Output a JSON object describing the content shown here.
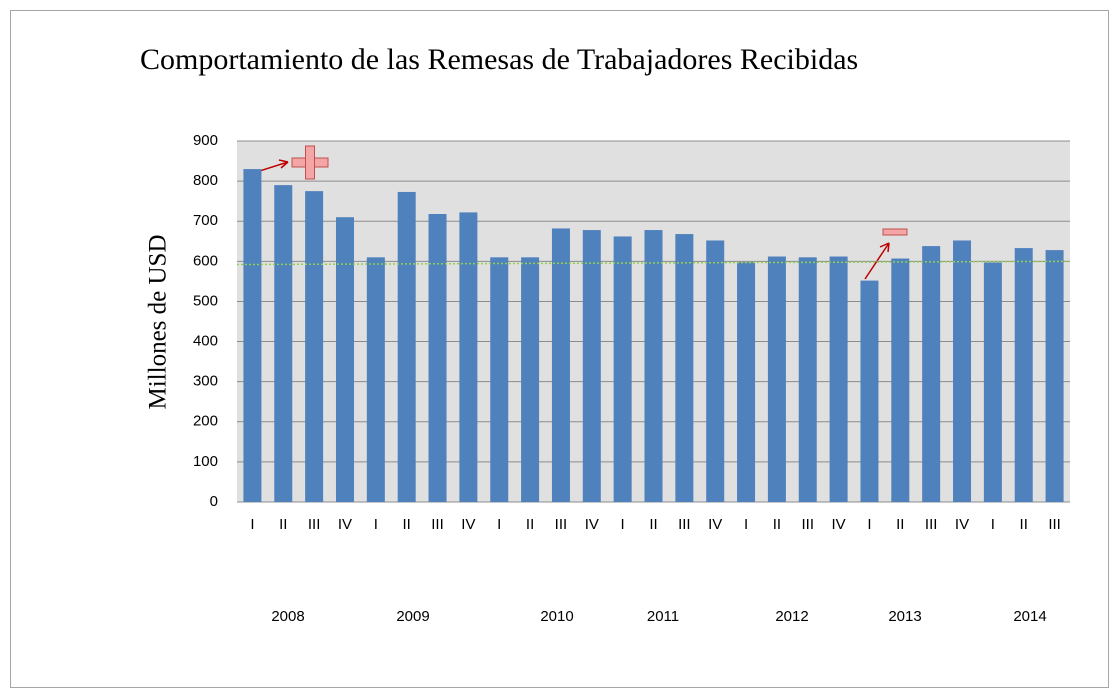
{
  "chart_data": {
    "type": "bar",
    "title": "Comportamiento de las Remesas  de Trabajadores Recibidas",
    "y_label": "Millones de USD",
    "categories": [
      "I",
      "II",
      "III",
      "IV",
      "I",
      "II",
      "III",
      "IV",
      "I",
      "II",
      "III",
      "IV",
      "I",
      "II",
      "III",
      "IV",
      "I",
      "II",
      "III",
      "IV",
      "I",
      "II",
      "III",
      "IV",
      "I",
      "II",
      "III"
    ],
    "years": [
      "2008",
      "2009",
      "2010",
      "2011",
      "2012",
      "2013",
      "2014"
    ],
    "values": [
      830,
      790,
      775,
      710,
      610,
      773,
      718,
      722,
      610,
      610,
      682,
      678,
      662,
      678,
      668,
      652,
      598,
      612,
      610,
      612,
      552,
      607,
      638,
      652,
      597,
      633,
      628
    ],
    "color": "#4f81bd",
    "reference_line": {
      "values": [
        592,
        600
      ],
      "color": "#92d050"
    },
    "ylim": [
      0,
      900
    ],
    "yticks": [
      0,
      100,
      200,
      300,
      400,
      500,
      600,
      700,
      800,
      900
    ],
    "grid": true
  }
}
